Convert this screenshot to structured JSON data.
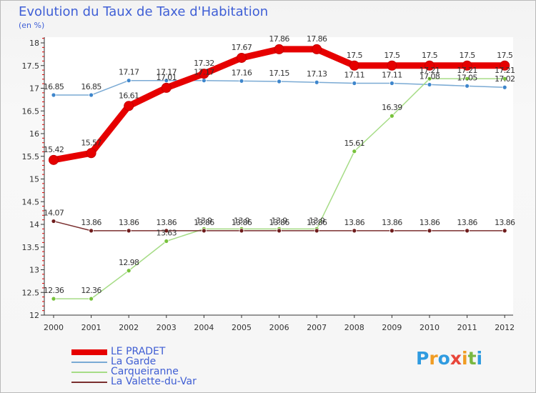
{
  "title": "Evolution du Taux de Taxe d'Habitation",
  "subtitle": "(en %)",
  "logo": {
    "letters": [
      "P",
      "r",
      "o",
      "x",
      "i",
      "t",
      "i"
    ],
    "colors": [
      "#2f9be0",
      "#f09c23",
      "#2f9be0",
      "#e8463a",
      "#f09c23",
      "#79b842",
      "#2f9be0"
    ]
  },
  "chart_data": {
    "type": "line",
    "title": "Evolution du Taux de Taxe d'Habitation",
    "ylabel": "(en %)",
    "xlabel": "",
    "x": [
      "2000",
      "2001",
      "2002",
      "2003",
      "2004",
      "2005",
      "2006",
      "2007",
      "2008",
      "2009",
      "2010",
      "2011",
      "2012"
    ],
    "ylim": [
      12,
      18
    ],
    "yticks": [
      "12",
      "12.5",
      "13",
      "13.5",
      "14",
      "14.5",
      "15",
      "15.5",
      "16",
      "16.5",
      "17",
      "17.5",
      "18"
    ],
    "grid": false,
    "legend_position": "bottom-left",
    "series": [
      {
        "name": "LE PRADET",
        "color": "#e60000",
        "marker_color": "#e60000",
        "emphasis": true,
        "values": [
          15.42,
          15.57,
          16.61,
          17.01,
          17.32,
          17.67,
          17.86,
          17.86,
          17.5,
          17.5,
          17.5,
          17.5,
          17.5
        ],
        "labels": [
          "15.42",
          "15.57",
          "16.61",
          "17.01",
          "17.32",
          "17.67",
          "17.86",
          "17.86",
          "17.5",
          "17.5",
          "17.5",
          "17.5",
          "17.5"
        ]
      },
      {
        "name": "La Garde",
        "color": "#7aaad4",
        "marker_color": "#3e86cc",
        "emphasis": false,
        "values": [
          16.85,
          16.85,
          17.17,
          17.17,
          17.17,
          17.16,
          17.15,
          17.13,
          17.11,
          17.11,
          17.08,
          17.05,
          17.02
        ],
        "labels": [
          "16.85",
          "16.85",
          "17.17",
          "17.17",
          "17.17",
          "17.16",
          "17.15",
          "17.13",
          "17.11",
          "17.11",
          "17.08",
          "17.05",
          "17.02"
        ]
      },
      {
        "name": "Carqueiranne",
        "color": "#a6dc86",
        "marker_color": "#78c23c",
        "emphasis": false,
        "values": [
          12.36,
          12.36,
          12.98,
          13.63,
          13.9,
          13.9,
          13.9,
          13.9,
          15.61,
          16.39,
          17.21,
          17.21,
          17.21
        ],
        "labels": [
          "12.36",
          "12.36",
          "12.98",
          "13.63",
          "13.9",
          "13.9",
          "13.9",
          "13.9",
          "15.61",
          "16.39",
          "17.21",
          "17.21",
          "17.21"
        ]
      },
      {
        "name": "La Valette-du-Var",
        "color": "#7a2f2f",
        "marker_color": "#6e1c1c",
        "emphasis": false,
        "values": [
          14.07,
          13.86,
          13.86,
          13.86,
          13.86,
          13.86,
          13.86,
          13.86,
          13.86,
          13.86,
          13.86,
          13.86,
          13.86
        ],
        "labels": [
          "14.07",
          "13.86",
          "13.86",
          "13.86",
          "13.86",
          "13.86",
          "13.86",
          "13.86",
          "13.86",
          "13.86",
          "13.86",
          "13.86",
          "13.86"
        ]
      }
    ]
  }
}
